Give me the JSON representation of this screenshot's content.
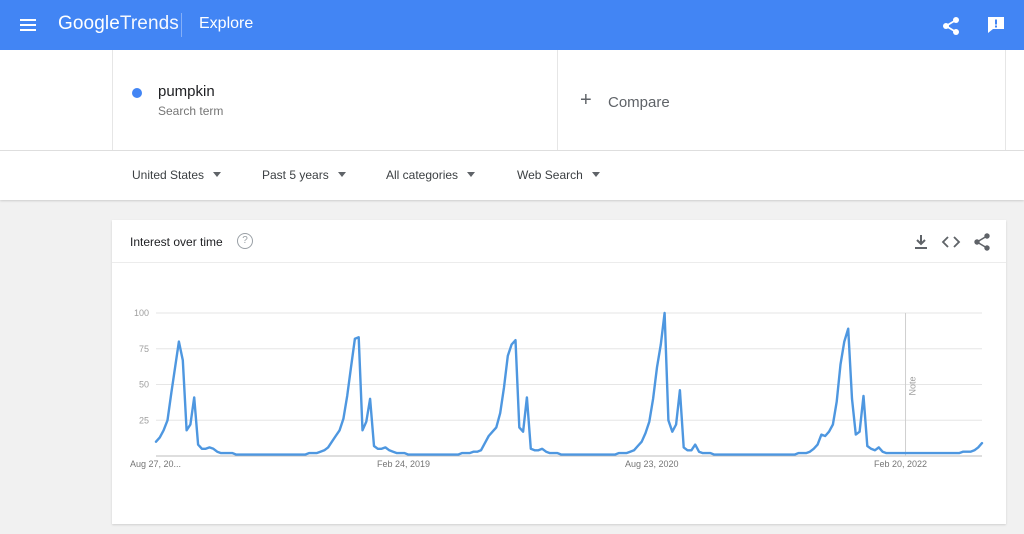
{
  "header": {
    "logo_google": "Google",
    "logo_trends": "Trends",
    "title": "Explore",
    "menu_icon": "menu-icon",
    "share_icon": "share-icon",
    "feedback_icon": "feedback-icon"
  },
  "search": {
    "term": "pumpkin",
    "term_type": "Search term",
    "term_color": "#4285f4",
    "compare_label": "Compare"
  },
  "filters": [
    {
      "label": "United States"
    },
    {
      "label": "Past 5 years"
    },
    {
      "label": "All categories"
    },
    {
      "label": "Web Search"
    }
  ],
  "card": {
    "title": "Interest over time",
    "help_icon": "help-icon",
    "download_icon": "download-icon",
    "embed_icon": "embed-icon",
    "share_icon": "share-icon"
  },
  "chart_data": {
    "type": "line",
    "series": [
      {
        "color": "#4e97e0",
        "values": [
          10,
          13,
          18,
          25,
          44,
          62,
          80,
          67,
          18,
          22,
          41,
          8,
          5,
          5,
          6,
          5,
          3,
          2,
          2,
          2,
          2,
          1,
          1,
          1,
          1,
          1,
          1,
          1,
          1,
          1,
          1,
          1,
          1,
          1,
          1,
          1,
          1,
          1,
          1,
          1,
          2,
          2,
          2,
          3,
          4,
          6,
          10,
          14,
          18,
          26,
          42,
          62,
          82,
          83,
          18,
          24,
          40,
          7,
          5,
          5,
          6,
          4,
          3,
          2,
          2,
          2,
          1,
          1,
          1,
          1,
          1,
          1,
          1,
          1,
          1,
          1,
          1,
          1,
          1,
          1,
          2,
          2,
          2,
          3,
          3,
          4,
          9,
          14,
          17,
          20,
          30,
          48,
          70,
          78,
          81,
          20,
          17,
          41,
          5,
          4,
          4,
          5,
          3,
          2,
          2,
          2,
          1,
          1,
          1,
          1,
          1,
          1,
          1,
          1,
          1,
          1,
          1,
          1,
          1,
          1,
          1,
          2,
          2,
          2,
          3,
          4,
          7,
          10,
          16,
          24,
          40,
          62,
          78,
          100,
          25,
          17,
          22,
          46,
          6,
          4,
          4,
          8,
          3,
          2,
          2,
          2,
          1,
          1,
          1,
          1,
          1,
          1,
          1,
          1,
          1,
          1,
          1,
          1,
          1,
          1,
          1,
          1,
          1,
          1,
          1,
          1,
          1,
          1,
          2,
          2,
          2,
          3,
          5,
          8,
          15,
          14,
          17,
          22,
          38,
          64,
          80,
          89,
          40,
          15,
          17,
          42,
          7,
          5,
          4,
          6,
          3,
          2,
          2,
          2,
          2,
          2,
          2,
          2,
          2,
          2,
          2,
          2,
          2,
          2,
          2,
          2,
          2,
          2,
          2,
          2,
          2,
          3,
          3,
          3,
          4,
          6,
          9
        ]
      }
    ],
    "x_tick_labels": [
      "Aug 27, 20...",
      "Feb 24, 2019",
      "Aug 23, 2020",
      "Feb 20, 2022"
    ],
    "y_ticks": [
      25,
      50,
      75,
      100
    ],
    "ylim": [
      0,
      100
    ],
    "note_label": "Note",
    "grid": true
  }
}
